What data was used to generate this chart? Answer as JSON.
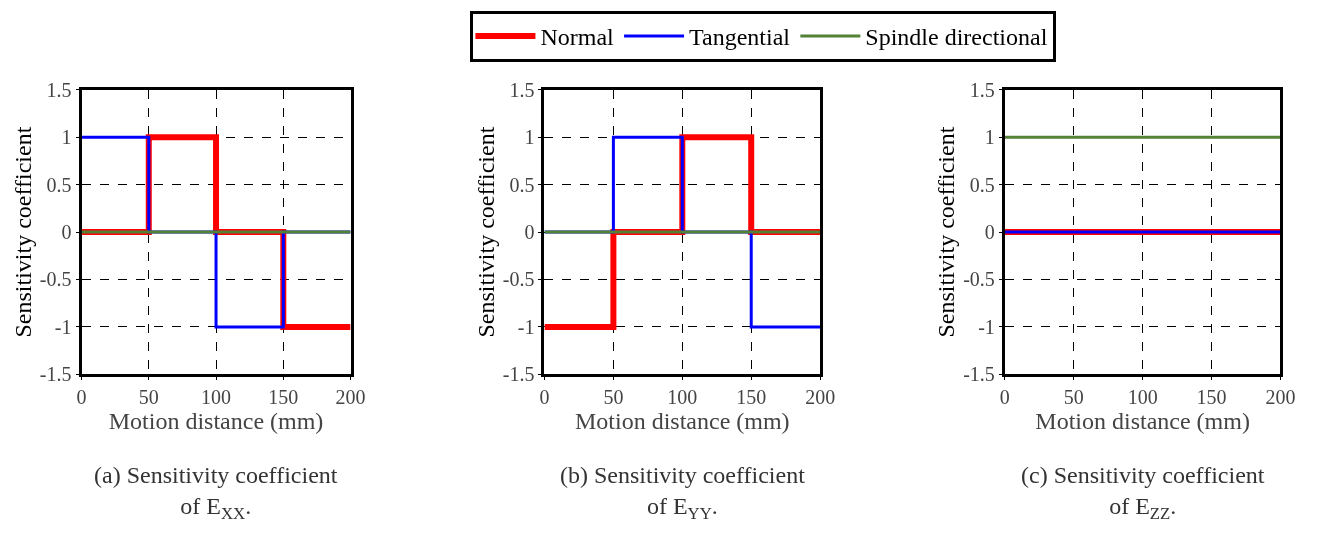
{
  "chart_data": [
    {
      "type": "step",
      "xlabel": "Motion distance (mm)",
      "ylabel": "Sensitivity coefficient",
      "x": [
        0,
        50,
        100,
        150,
        200
      ],
      "xlim": [
        0,
        200
      ],
      "xticks": [
        0,
        50,
        100,
        150,
        200
      ],
      "ylim": [
        -1.5,
        1.5
      ],
      "yticks": [
        -1.5,
        -1,
        -0.5,
        0,
        0.5,
        1,
        1.5
      ],
      "grid": true,
      "line_style": "solid",
      "legend": "top",
      "annotations": [
        "(a) Sensitivity coefficient of E$_{XX}$."
      ],
      "series": [
        {
          "name": "Normal",
          "color": "#ff0000",
          "values": [
            0,
            1,
            0,
            -1,
            -1
          ]
        },
        {
          "name": "Tangential",
          "color": "#0000ff",
          "values": [
            1,
            0,
            -1,
            0,
            0
          ]
        },
        {
          "name": "Spindle directional",
          "color": "#538135",
          "values": [
            0,
            0,
            0,
            0,
            0
          ]
        }
      ]
    },
    {
      "type": "step",
      "xlabel": "Motion distance (mm)",
      "ylabel": "Sensitivity coefficient",
      "x": [
        0,
        50,
        100,
        150,
        200
      ],
      "xlim": [
        0,
        200
      ],
      "xticks": [
        0,
        50,
        100,
        150,
        200
      ],
      "ylim": [
        -1.5,
        1.5
      ],
      "yticks": [
        -1.5,
        -1,
        -0.5,
        0,
        0.5,
        1,
        1.5
      ],
      "grid": true,
      "line_style": "solid",
      "annotations": [
        "(b) Sensitivity coefficient of E$_{YY}$."
      ],
      "series": [
        {
          "name": "Normal",
          "color": "#ff0000",
          "values": [
            -1,
            0,
            1,
            0,
            0
          ]
        },
        {
          "name": "Tangential",
          "color": "#0000ff",
          "values": [
            0,
            1,
            0,
            -1,
            -1
          ]
        },
        {
          "name": "Spindle directional",
          "color": "#538135",
          "values": [
            0,
            0,
            0,
            0,
            0
          ]
        }
      ]
    },
    {
      "type": "step",
      "xlabel": "Motion distance (mm)",
      "ylabel": "Sensitivity coefficient",
      "x": [
        0,
        50,
        100,
        150,
        200
      ],
      "xlim": [
        0,
        200
      ],
      "xticks": [
        0,
        50,
        100,
        150,
        200
      ],
      "ylim": [
        -1.5,
        1.5
      ],
      "yticks": [
        -1.5,
        -1,
        -0.5,
        0,
        0.5,
        1,
        1.5
      ],
      "grid": true,
      "line_style": "solid",
      "annotations": [
        "(c) Sensitivity coefficient of E$_{ZZ}$."
      ],
      "series": [
        {
          "name": "Normal",
          "color": "#ff0000",
          "values": [
            0,
            0,
            0,
            0,
            0
          ]
        },
        {
          "name": "Tangential",
          "color": "#0000ff",
          "values": [
            0,
            0,
            0,
            0,
            0
          ]
        },
        {
          "name": "Spindle directional",
          "color": "#538135",
          "values": [
            1,
            1,
            1,
            1,
            1
          ]
        }
      ]
    }
  ]
}
